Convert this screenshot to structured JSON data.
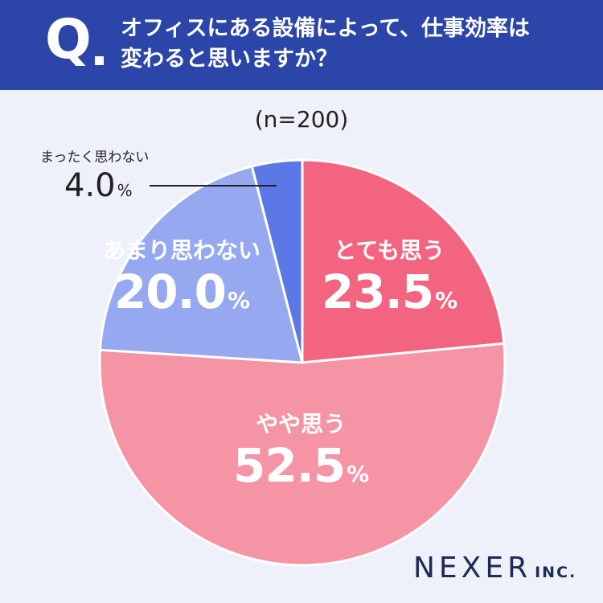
{
  "header": {
    "q_mark": "Q",
    "question_line1": "オフィスにある設備によって、仕事効率は",
    "question_line2": "変わると思いますか？"
  },
  "sample_size": "(n=200)",
  "percent_sign": "%",
  "chart_data": {
    "type": "pie",
    "title": "オフィスにある設備によって、仕事効率は変わると思いますか？",
    "slices": [
      {
        "label": "とても思う",
        "value": 23.5,
        "display": "23.5",
        "color": "#f2647f"
      },
      {
        "label": "やや思う",
        "value": 52.5,
        "display": "52.5",
        "color": "#f494a5"
      },
      {
        "label": "あまり思わない",
        "value": 20.0,
        "display": "20.0",
        "color": "#96a9f0"
      },
      {
        "label": "まったく思わない",
        "value": 4.0,
        "display": "4.0",
        "color": "#5b78e6"
      }
    ],
    "start_angle_deg": 0,
    "direction": "clockwise"
  },
  "logo": {
    "main": "NEXER",
    "suffix": "INC."
  }
}
